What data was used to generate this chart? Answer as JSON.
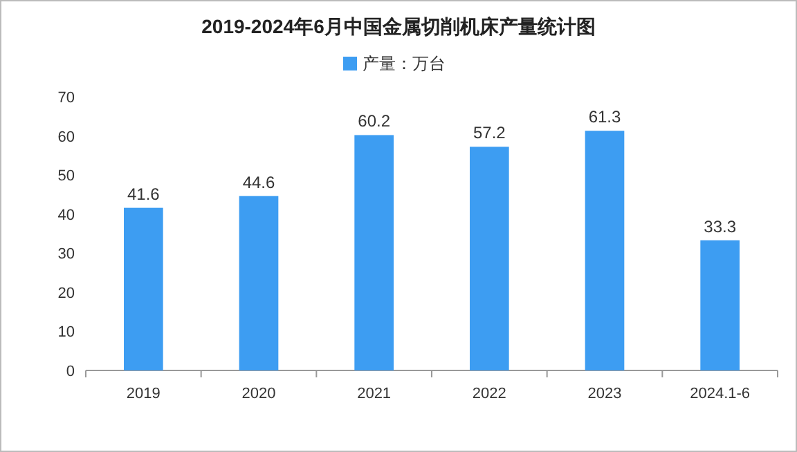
{
  "chart_data": {
    "type": "bar",
    "title": "2019-2024年6月中国金属切削机床产量统计图",
    "categories": [
      "2019",
      "2020",
      "2021",
      "2022",
      "2023",
      "2024.1-6"
    ],
    "series": [
      {
        "name": "产量：万台",
        "color": "#3d9df2",
        "values": [
          41.6,
          44.6,
          60.2,
          57.2,
          61.3,
          33.3
        ]
      }
    ],
    "ylim": [
      0,
      70
    ],
    "yticks": [
      0,
      10,
      20,
      30,
      40,
      50,
      60,
      70
    ],
    "data_labels": true,
    "legend": "top"
  }
}
